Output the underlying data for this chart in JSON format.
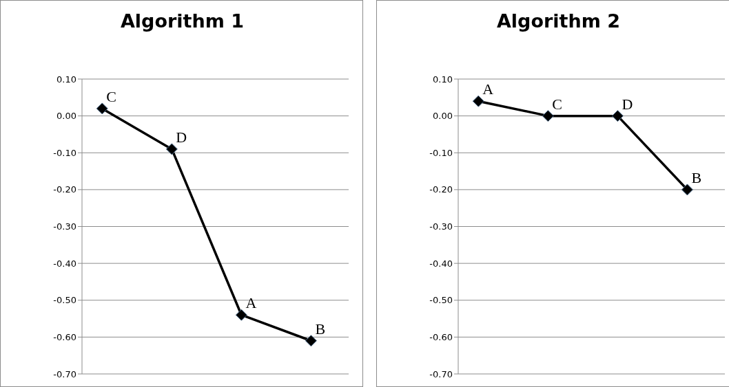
{
  "chart_data": [
    {
      "type": "line",
      "title": "Algorithm 1",
      "categories": [
        null,
        null,
        null,
        null
      ],
      "series": [
        {
          "color": "#000000",
          "values": [
            0.02,
            -0.09,
            -0.54,
            -0.61
          ],
          "value_labels": [
            "C",
            "D",
            "A",
            "B"
          ]
        }
      ],
      "ylim": [
        -0.7,
        0.1
      ],
      "yticks": [
        {
          "value": -0.7,
          "label": "-0.70"
        },
        {
          "value": -0.6,
          "label": "-0.60"
        },
        {
          "value": -0.5,
          "label": "-0.50"
        },
        {
          "value": -0.4,
          "label": "-0.40"
        },
        {
          "value": -0.3,
          "label": "-0.30"
        },
        {
          "value": -0.2,
          "label": "-0.20"
        },
        {
          "value": -0.1,
          "label": "-0.10"
        },
        {
          "value": 0,
          "label": "0.00"
        },
        {
          "value": 0.1,
          "label": "0.10"
        }
      ],
      "grid": "y",
      "marker": "diamond",
      "legend": false
    },
    {
      "type": "line",
      "title": "Algorithm 2",
      "categories": [
        null,
        null,
        null,
        null
      ],
      "series": [
        {
          "color": "#000000",
          "values": [
            0.04,
            0.0,
            0.0,
            -0.2
          ],
          "value_labels": [
            "A",
            "C",
            "D",
            "B"
          ]
        }
      ],
      "ylim": [
        -0.7,
        0.1
      ],
      "yticks": [
        {
          "value": -0.7,
          "label": "-0.70"
        },
        {
          "value": -0.6,
          "label": "-0.60"
        },
        {
          "value": -0.5,
          "label": "-0.50"
        },
        {
          "value": -0.4,
          "label": "-0.40"
        },
        {
          "value": -0.3,
          "label": "-0.30"
        },
        {
          "value": -0.2,
          "label": "-0.20"
        },
        {
          "value": -0.1,
          "label": "-0.10"
        },
        {
          "value": 0,
          "label": "0.00"
        },
        {
          "value": 0.1,
          "label": "0.10"
        }
      ],
      "grid": "y",
      "marker": "diamond",
      "legend": false
    }
  ]
}
